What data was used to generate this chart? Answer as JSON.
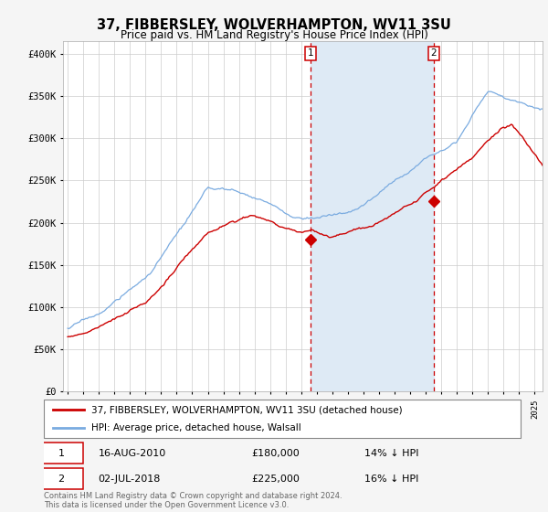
{
  "title": "37, FIBBERSLEY, WOLVERHAMPTON, WV11 3SU",
  "subtitle": "Price paid vs. HM Land Registry's House Price Index (HPI)",
  "title_fontsize": 10.5,
  "subtitle_fontsize": 8.5,
  "ylabel_ticks": [
    "£0",
    "£50K",
    "£100K",
    "£150K",
    "£200K",
    "£250K",
    "£300K",
    "£350K",
    "£400K"
  ],
  "ytick_values": [
    0,
    50000,
    100000,
    150000,
    200000,
    250000,
    300000,
    350000,
    400000
  ],
  "ylim": [
    0,
    415000
  ],
  "xlim_start": 1994.7,
  "xlim_end": 2025.5,
  "red_line_color": "#cc0000",
  "blue_line_color": "#7aabe0",
  "shaded_region_color": "#deeaf5",
  "dashed_line_color": "#cc0000",
  "marker1_x": 2010.62,
  "marker1_y": 180000,
  "marker2_x": 2018.5,
  "marker2_y": 225000,
  "annotation1_date": "16-AUG-2010",
  "annotation1_price": "£180,000",
  "annotation1_hpi": "14% ↓ HPI",
  "annotation2_date": "02-JUL-2018",
  "annotation2_price": "£225,000",
  "annotation2_hpi": "16% ↓ HPI",
  "legend1_label": "37, FIBBERSLEY, WOLVERHAMPTON, WV11 3SU (detached house)",
  "legend2_label": "HPI: Average price, detached house, Walsall",
  "footer": "Contains HM Land Registry data © Crown copyright and database right 2024.\nThis data is licensed under the Open Government Licence v3.0.",
  "background_color": "#f5f5f5",
  "plot_bg_color": "#ffffff",
  "grid_color": "#cccccc"
}
